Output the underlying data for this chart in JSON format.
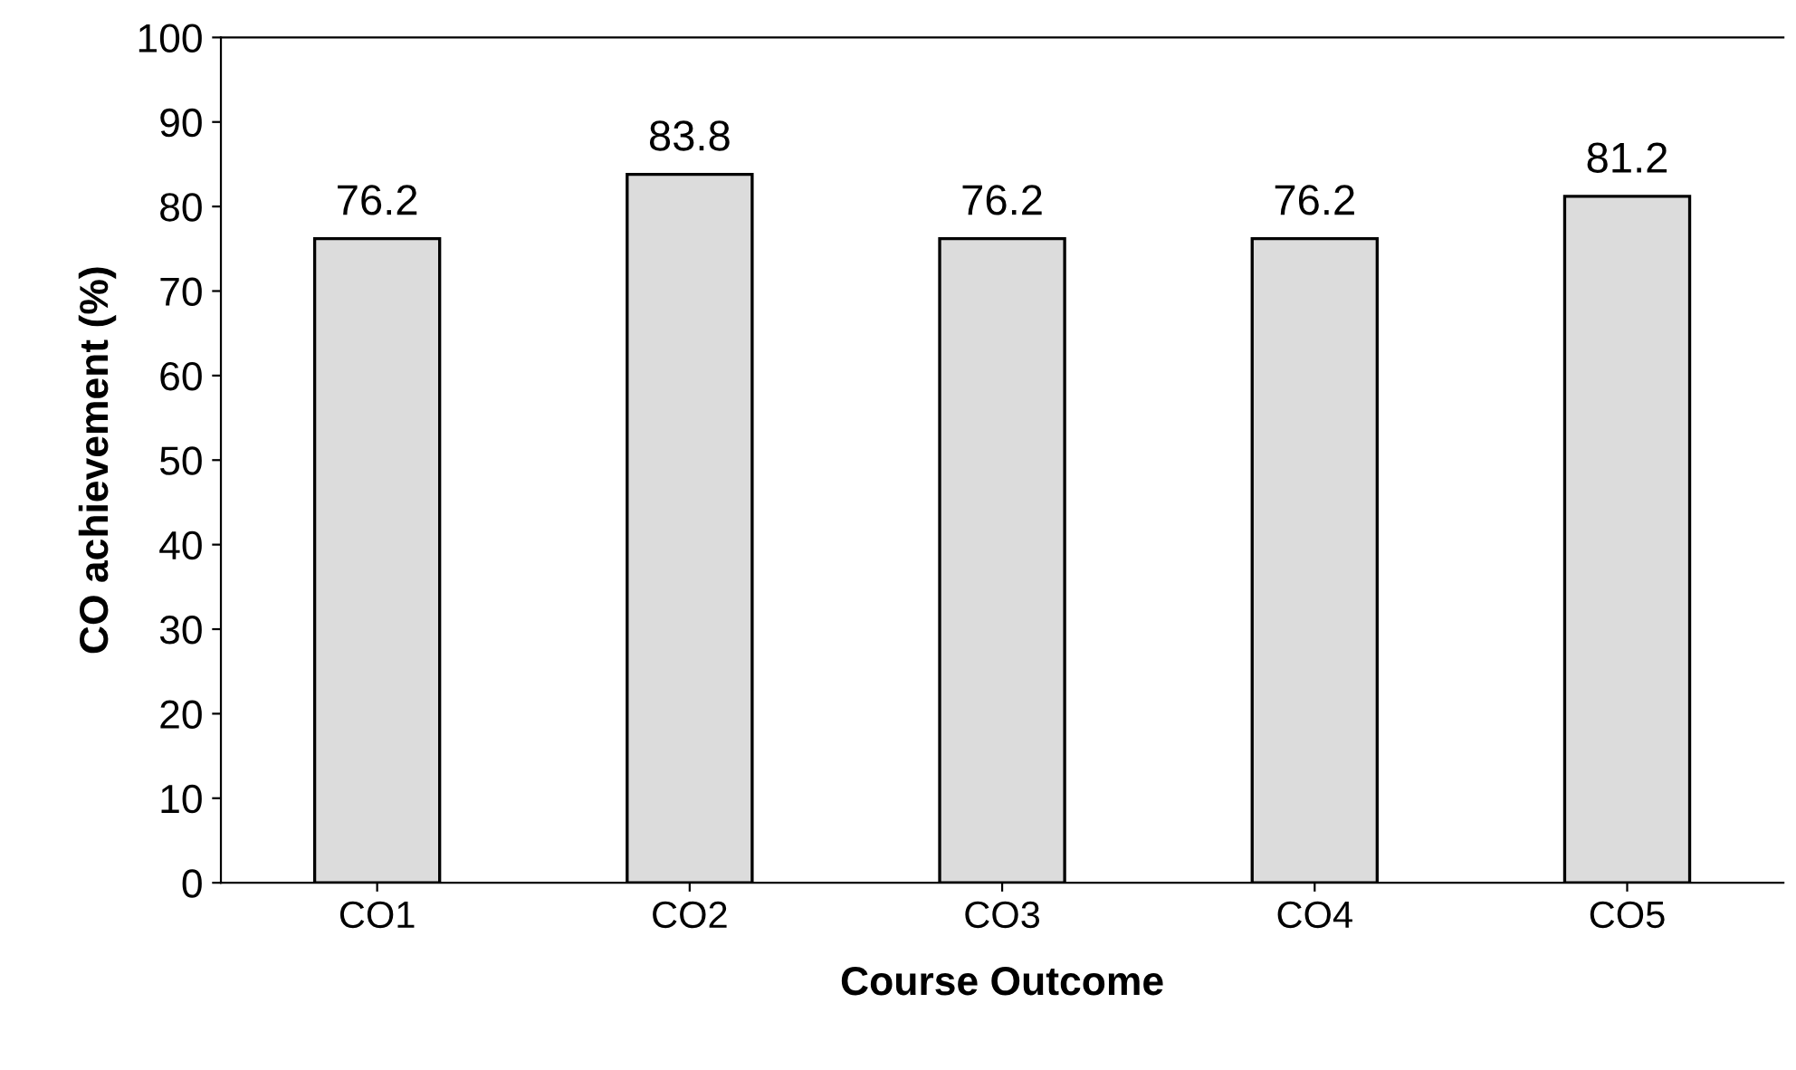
{
  "chart_data": {
    "type": "bar",
    "xlabel": "Course Outcome",
    "ylabel": "CO achievement (%)",
    "categories": [
      "CO1",
      "CO2",
      "CO3",
      "CO4",
      "CO5"
    ],
    "values": [
      76.2,
      83.8,
      76.2,
      76.2,
      81.2
    ],
    "color": "#dcdcdc",
    "ylim": [
      0,
      100
    ],
    "yticks": [
      0,
      10,
      20,
      30,
      40,
      50,
      60,
      70,
      80,
      90,
      100
    ],
    "data_labels": true,
    "grid": false,
    "legend": false
  }
}
